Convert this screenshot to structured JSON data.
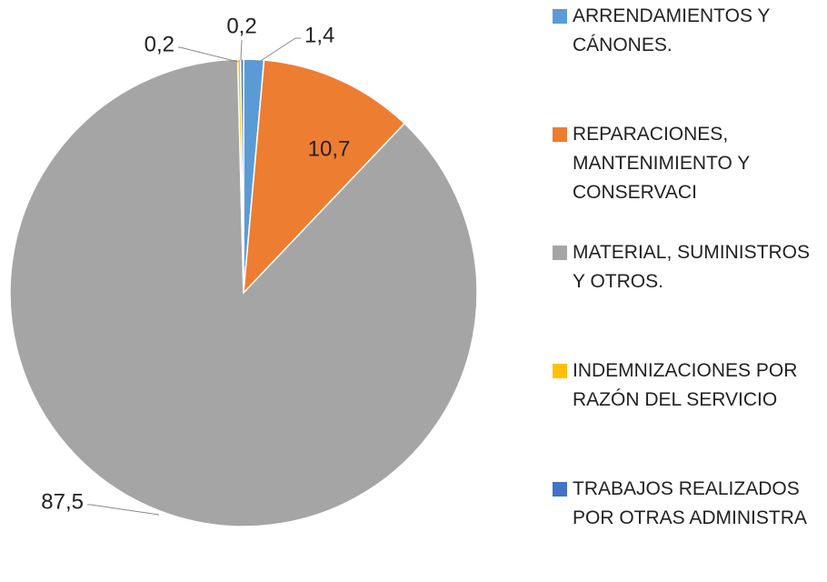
{
  "chart_data": {
    "type": "pie",
    "series": [
      {
        "name": "ARRENDAMIENTOS Y CÁNONES.",
        "color": "#5b9bd5",
        "values": [
          1.4
        ],
        "value_labels": [
          "1,4"
        ]
      },
      {
        "name": "REPARACIONES, MANTENIMIENTO Y CONSERVACI",
        "color": "#ed7d31",
        "values": [
          10.7
        ],
        "value_labels": [
          "10,7"
        ]
      },
      {
        "name": "MATERIAL, SUMINISTROS Y OTROS.",
        "color": "#a5a5a5",
        "values": [
          87.5
        ],
        "value_labels": [
          "87,5"
        ]
      },
      {
        "name": "INDEMNIZACIONES POR RAZÓN DEL SERVICIO",
        "color": "#ffc000",
        "values": [
          0.2
        ],
        "value_labels": [
          "0,2"
        ]
      },
      {
        "name": "TRABAJOS REALIZADOS POR OTRAS ADMINISTRA",
        "color": "#4472c4",
        "values": [
          0.2
        ],
        "value_labels": [
          "0,2"
        ]
      }
    ],
    "legend": "right"
  }
}
